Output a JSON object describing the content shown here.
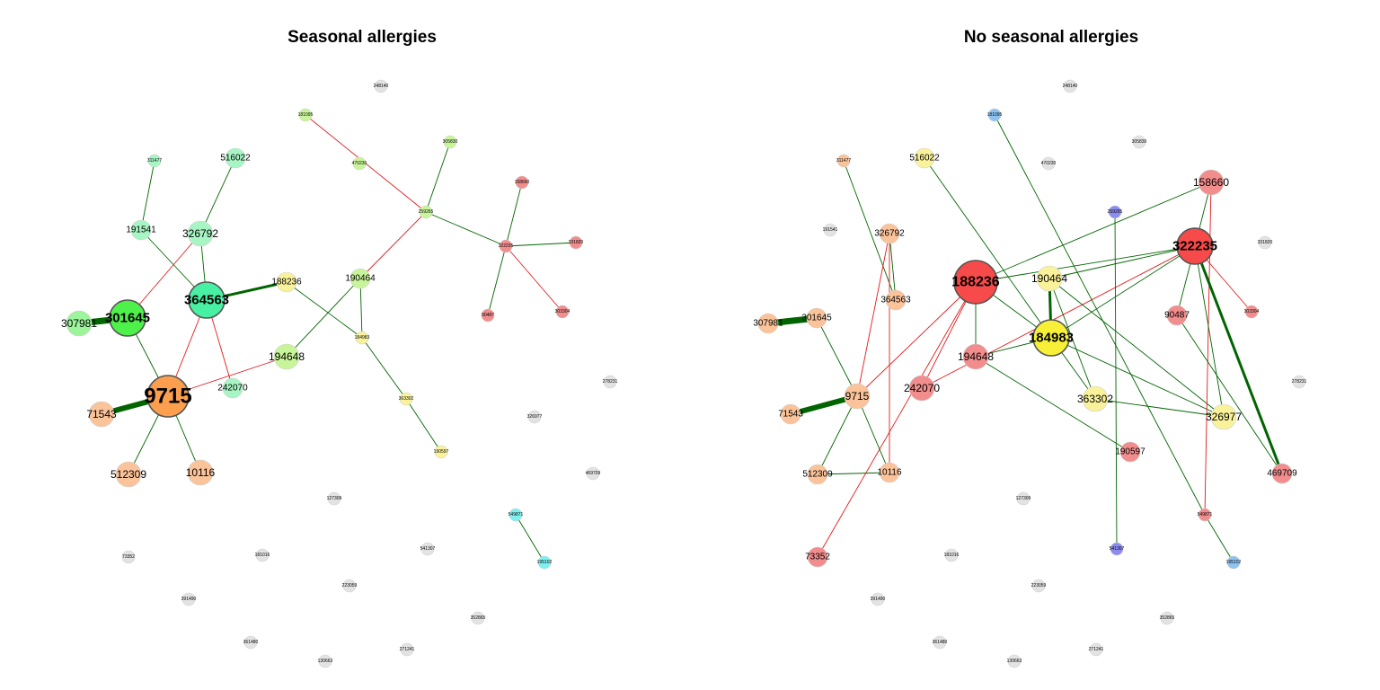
{
  "colors": {
    "edge_positive": "#006400",
    "edge_negative": "#e41a1c",
    "node_border": "#5a5a5a",
    "inactive_node": "#e3e3e3"
  },
  "panels": [
    {
      "title": "Seasonal allergies",
      "nodes": [
        {
          "id": "248140",
          "color": "#e3e3e3",
          "size": "xs"
        },
        {
          "id": "181095",
          "color": "#c9f59a",
          "size": "xs"
        },
        {
          "id": "305830",
          "color": "#c9f59a",
          "size": "xs"
        },
        {
          "id": "470230",
          "color": "#c9f59a",
          "size": "xs"
        },
        {
          "id": "311477",
          "color": "#a8f5c4",
          "size": "xs"
        },
        {
          "id": "516022",
          "color": "#a8f5c4",
          "size": "s"
        },
        {
          "id": "158660",
          "color": "#f28d8d",
          "size": "xs"
        },
        {
          "id": "259265",
          "color": "#c9f59a",
          "size": "xs"
        },
        {
          "id": "191541",
          "color": "#a8f5c4",
          "size": "s"
        },
        {
          "id": "326792",
          "color": "#a8f5c4",
          "size": "m"
        },
        {
          "id": "322235",
          "color": "#f28d8d",
          "size": "xs"
        },
        {
          "id": "331820",
          "color": "#f28d8d",
          "size": "xs"
        },
        {
          "id": "188236",
          "color": "#faf29a",
          "size": "s"
        },
        {
          "id": "190464",
          "color": "#c9f59a",
          "size": "s"
        },
        {
          "id": "364563",
          "color": "#48f0a3",
          "size": "l",
          "bold": true
        },
        {
          "id": "307981",
          "color": "#9cf59a",
          "size": "m"
        },
        {
          "id": "301645",
          "color": "#4ef04a",
          "size": "l",
          "bold": true
        },
        {
          "id": "90487",
          "color": "#f28d8d",
          "size": "xs"
        },
        {
          "id": "303304",
          "color": "#f28d8d",
          "size": "xs"
        },
        {
          "id": "184983",
          "color": "#faf29a",
          "size": "xs"
        },
        {
          "id": "194648",
          "color": "#c9f59a",
          "size": "m"
        },
        {
          "id": "9715",
          "color": "#fb9f4f",
          "size": "xl",
          "bold": true
        },
        {
          "id": "242070",
          "color": "#a8f5c4",
          "size": "s"
        },
        {
          "id": "278231",
          "color": "#e3e3e3",
          "size": "xs"
        },
        {
          "id": "363302",
          "color": "#faf29a",
          "size": "xs"
        },
        {
          "id": "71543",
          "color": "#fbc39a",
          "size": "m"
        },
        {
          "id": "326977",
          "color": "#e3e3e3",
          "size": "xs"
        },
        {
          "id": "190597",
          "color": "#faf29a",
          "size": "xs"
        },
        {
          "id": "512309",
          "color": "#fbc39a",
          "size": "m"
        },
        {
          "id": "10116",
          "color": "#fbc39a",
          "size": "m"
        },
        {
          "id": "469709",
          "color": "#e3e3e3",
          "size": "xs"
        },
        {
          "id": "127309",
          "color": "#e3e3e3",
          "size": "xs"
        },
        {
          "id": "549871",
          "color": "#7ef0f0",
          "size": "xs"
        },
        {
          "id": "541307",
          "color": "#e3e3e3",
          "size": "xs"
        },
        {
          "id": "73352",
          "color": "#e3e3e3",
          "size": "xs"
        },
        {
          "id": "181016",
          "color": "#e3e3e3",
          "size": "xs"
        },
        {
          "id": "195102",
          "color": "#7ef0f0",
          "size": "xs"
        },
        {
          "id": "223059",
          "color": "#e3e3e3",
          "size": "xs"
        },
        {
          "id": "391490",
          "color": "#e3e3e3",
          "size": "xs"
        },
        {
          "id": "352865",
          "color": "#e3e3e3",
          "size": "xs"
        },
        {
          "id": "361480",
          "color": "#e3e3e3",
          "size": "xs"
        },
        {
          "id": "271241",
          "color": "#e3e3e3",
          "size": "xs"
        },
        {
          "id": "130663",
          "color": "#e3e3e3",
          "size": "xs"
        }
      ],
      "edges": [
        {
          "from": "181095",
          "to": "259265",
          "sign": "neg",
          "w": 1
        },
        {
          "from": "305830",
          "to": "259265",
          "sign": "pos",
          "w": 1
        },
        {
          "from": "259265",
          "to": "322235",
          "sign": "pos",
          "w": 1
        },
        {
          "from": "259265",
          "to": "190464",
          "sign": "neg",
          "w": 1
        },
        {
          "from": "158660",
          "to": "322235",
          "sign": "pos",
          "w": 1
        },
        {
          "from": "322235",
          "to": "331820",
          "sign": "pos",
          "w": 1
        },
        {
          "from": "322235",
          "to": "90487",
          "sign": "pos",
          "w": 1
        },
        {
          "from": "322235",
          "to": "303304",
          "sign": "neg",
          "w": 1
        },
        {
          "from": "311477",
          "to": "191541",
          "sign": "pos",
          "w": 1
        },
        {
          "from": "516022",
          "to": "326792",
          "sign": "pos",
          "w": 1
        },
        {
          "from": "191541",
          "to": "364563",
          "sign": "pos",
          "w": 1
        },
        {
          "from": "326792",
          "to": "364563",
          "sign": "pos",
          "w": 1
        },
        {
          "from": "326792",
          "to": "301645",
          "sign": "neg",
          "w": 1
        },
        {
          "from": "364563",
          "to": "188236",
          "sign": "pos",
          "w": 3
        },
        {
          "from": "364563",
          "to": "9715",
          "sign": "neg",
          "w": 1
        },
        {
          "from": "364563",
          "to": "242070",
          "sign": "neg",
          "w": 1
        },
        {
          "from": "188236",
          "to": "184983",
          "sign": "pos",
          "w": 1
        },
        {
          "from": "190464",
          "to": "184983",
          "sign": "pos",
          "w": 1
        },
        {
          "from": "190464",
          "to": "194648",
          "sign": "pos",
          "w": 1
        },
        {
          "from": "184983",
          "to": "363302",
          "sign": "pos",
          "w": 1
        },
        {
          "from": "363302",
          "to": "190597",
          "sign": "pos",
          "w": 1
        },
        {
          "from": "307981",
          "to": "301645",
          "sign": "pos",
          "w": 7
        },
        {
          "from": "301645",
          "to": "9715",
          "sign": "pos",
          "w": 1
        },
        {
          "from": "194648",
          "to": "9715",
          "sign": "neg",
          "w": 1
        },
        {
          "from": "71543",
          "to": "9715",
          "sign": "pos",
          "w": 6
        },
        {
          "from": "9715",
          "to": "512309",
          "sign": "pos",
          "w": 1
        },
        {
          "from": "9715",
          "to": "10116",
          "sign": "pos",
          "w": 1
        },
        {
          "from": "549871",
          "to": "195102",
          "sign": "pos",
          "w": 1
        }
      ]
    },
    {
      "title": "No seasonal allergies",
      "nodes": [
        {
          "id": "248140",
          "color": "#e3e3e3",
          "size": "xs"
        },
        {
          "id": "181095",
          "color": "#8ec3f0",
          "size": "xs"
        },
        {
          "id": "305830",
          "color": "#e3e3e3",
          "size": "xs"
        },
        {
          "id": "470230",
          "color": "#e3e3e3",
          "size": "xs"
        },
        {
          "id": "311477",
          "color": "#fbc39a",
          "size": "xs"
        },
        {
          "id": "516022",
          "color": "#faf29a",
          "size": "s"
        },
        {
          "id": "158660",
          "color": "#f28d8d",
          "size": "m"
        },
        {
          "id": "259265",
          "color": "#8c8cf0",
          "size": "xs"
        },
        {
          "id": "191541",
          "color": "#e3e3e3",
          "size": "xs"
        },
        {
          "id": "326792",
          "color": "#fbc39a",
          "size": "s"
        },
        {
          "id": "322235",
          "color": "#f74a4a",
          "size": "l",
          "bold": true
        },
        {
          "id": "331820",
          "color": "#e3e3e3",
          "size": "xs"
        },
        {
          "id": "188236",
          "color": "#f74a4a",
          "size": "xl2",
          "bold": true
        },
        {
          "id": "190464",
          "color": "#faf29a",
          "size": "m"
        },
        {
          "id": "364563",
          "color": "#fbc39a",
          "size": "s"
        },
        {
          "id": "307981",
          "color": "#fbc39a",
          "size": "s"
        },
        {
          "id": "301645",
          "color": "#fbc39a",
          "size": "s"
        },
        {
          "id": "90487",
          "color": "#f28d8d",
          "size": "s"
        },
        {
          "id": "303304",
          "color": "#f28d8d",
          "size": "xs"
        },
        {
          "id": "184983",
          "color": "#f7f036",
          "size": "l",
          "bold": true
        },
        {
          "id": "194648",
          "color": "#f28d8d",
          "size": "m"
        },
        {
          "id": "9715",
          "color": "#fbc39a",
          "size": "m"
        },
        {
          "id": "242070",
          "color": "#f28d8d",
          "size": "m"
        },
        {
          "id": "278231",
          "color": "#e3e3e3",
          "size": "xs"
        },
        {
          "id": "363302",
          "color": "#faf29a",
          "size": "m"
        },
        {
          "id": "71543",
          "color": "#fbc39a",
          "size": "s"
        },
        {
          "id": "326977",
          "color": "#faf29a",
          "size": "m"
        },
        {
          "id": "190597",
          "color": "#f28d8d",
          "size": "s"
        },
        {
          "id": "512309",
          "color": "#fbc39a",
          "size": "s"
        },
        {
          "id": "10116",
          "color": "#fbc39a",
          "size": "s"
        },
        {
          "id": "469709",
          "color": "#f28d8d",
          "size": "s"
        },
        {
          "id": "127309",
          "color": "#e3e3e3",
          "size": "xs"
        },
        {
          "id": "549871",
          "color": "#f28d8d",
          "size": "xs"
        },
        {
          "id": "541307",
          "color": "#8c8cf0",
          "size": "xs"
        },
        {
          "id": "73352",
          "color": "#f28d8d",
          "size": "s"
        },
        {
          "id": "181016",
          "color": "#e3e3e3",
          "size": "xs"
        },
        {
          "id": "195102",
          "color": "#8ec3f0",
          "size": "xs"
        },
        {
          "id": "223059",
          "color": "#e3e3e3",
          "size": "xs"
        },
        {
          "id": "391490",
          "color": "#e3e3e3",
          "size": "xs"
        },
        {
          "id": "352865",
          "color": "#e3e3e3",
          "size": "xs"
        },
        {
          "id": "361480",
          "color": "#e3e3e3",
          "size": "xs"
        },
        {
          "id": "271241",
          "color": "#e3e3e3",
          "size": "xs"
        },
        {
          "id": "130663",
          "color": "#e3e3e3",
          "size": "xs"
        }
      ],
      "edges": [
        {
          "from": "311477",
          "to": "364563",
          "sign": "pos",
          "w": 1
        },
        {
          "from": "326792",
          "to": "364563",
          "sign": "pos",
          "w": 1
        },
        {
          "from": "326792",
          "to": "9715",
          "sign": "neg",
          "w": 1
        },
        {
          "from": "326792",
          "to": "10116",
          "sign": "neg",
          "w": 1
        },
        {
          "from": "307981",
          "to": "301645",
          "sign": "pos",
          "w": 7
        },
        {
          "from": "301645",
          "to": "9715",
          "sign": "pos",
          "w": 1
        },
        {
          "from": "71543",
          "to": "9715",
          "sign": "pos",
          "w": 6
        },
        {
          "from": "9715",
          "to": "512309",
          "sign": "pos",
          "w": 1
        },
        {
          "from": "9715",
          "to": "10116",
          "sign": "pos",
          "w": 1
        },
        {
          "from": "512309",
          "to": "10116",
          "sign": "pos",
          "w": 1
        },
        {
          "from": "9715",
          "to": "188236",
          "sign": "neg",
          "w": 1
        },
        {
          "from": "242070",
          "to": "188236",
          "sign": "neg",
          "w": 1
        },
        {
          "from": "73352",
          "to": "188236",
          "sign": "neg",
          "w": 1
        },
        {
          "from": "242070",
          "to": "322235",
          "sign": "neg",
          "w": 1
        },
        {
          "from": "188236",
          "to": "158660",
          "sign": "pos",
          "w": 1
        },
        {
          "from": "188236",
          "to": "322235",
          "sign": "pos",
          "w": 1
        },
        {
          "from": "188236",
          "to": "194648",
          "sign": "pos",
          "w": 1
        },
        {
          "from": "188236",
          "to": "184983",
          "sign": "pos",
          "w": 1
        },
        {
          "from": "516022",
          "to": "184983",
          "sign": "pos",
          "w": 1
        },
        {
          "from": "190464",
          "to": "184983",
          "sign": "pos",
          "w": 3
        },
        {
          "from": "190464",
          "to": "322235",
          "sign": "pos",
          "w": 1
        },
        {
          "from": "190464",
          "to": "363302",
          "sign": "pos",
          "w": 1
        },
        {
          "from": "190464",
          "to": "326977",
          "sign": "pos",
          "w": 1
        },
        {
          "from": "194648",
          "to": "184983",
          "sign": "pos",
          "w": 1
        },
        {
          "from": "194648",
          "to": "190597",
          "sign": "pos",
          "w": 1
        },
        {
          "from": "184983",
          "to": "363302",
          "sign": "pos",
          "w": 1
        },
        {
          "from": "184983",
          "to": "326977",
          "sign": "pos",
          "w": 1
        },
        {
          "from": "184983",
          "to": "322235",
          "sign": "pos",
          "w": 1
        },
        {
          "from": "363302",
          "to": "326977",
          "sign": "pos",
          "w": 1
        },
        {
          "from": "181095",
          "to": "549871",
          "sign": "pos",
          "w": 1
        },
        {
          "from": "259265",
          "to": "541307",
          "sign": "pos",
          "w": 1
        },
        {
          "from": "549871",
          "to": "195102",
          "sign": "pos",
          "w": 1
        },
        {
          "from": "158660",
          "to": "322235",
          "sign": "pos",
          "w": 1
        },
        {
          "from": "158660",
          "to": "549871",
          "sign": "neg",
          "w": 1
        },
        {
          "from": "322235",
          "to": "90487",
          "sign": "pos",
          "w": 1
        },
        {
          "from": "322235",
          "to": "303304",
          "sign": "neg",
          "w": 1
        },
        {
          "from": "322235",
          "to": "326977",
          "sign": "pos",
          "w": 1
        },
        {
          "from": "322235",
          "to": "469709",
          "sign": "pos",
          "w": 3
        },
        {
          "from": "90487",
          "to": "469709",
          "sign": "pos",
          "w": 1
        }
      ]
    }
  ]
}
